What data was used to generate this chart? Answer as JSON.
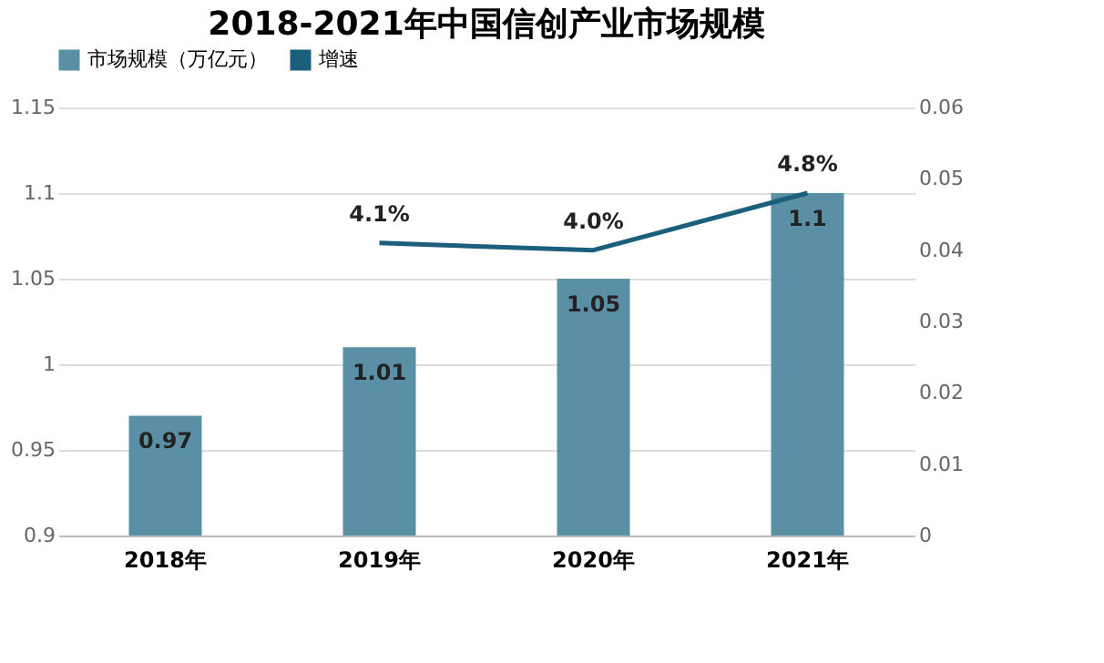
{
  "chart_data": {
    "type": "bar",
    "title": "2018-2021年中国信创产业市场规模",
    "categories": [
      "2018年",
      "2019年",
      "2020年",
      "2021年"
    ],
    "series": [
      {
        "name": "市场规模（万亿元）",
        "color": "#5b8fa6",
        "values": [
          0.97,
          1.01,
          1.05,
          1.1
        ],
        "value_labels": [
          "0.97",
          "1.01",
          "1.05",
          "1.1"
        ]
      },
      {
        "name": "增速",
        "type": "line",
        "axis": "y2",
        "color": "#1b5f7c",
        "values": [
          null,
          0.041,
          0.04,
          0.048
        ],
        "value_labels": [
          null,
          "4.1%",
          "4.0%",
          "4.8%"
        ]
      }
    ],
    "ylim": [
      0.9,
      1.15
    ],
    "yticks": [
      0.9,
      0.95,
      1,
      1.05,
      1.1,
      1.15
    ],
    "y2lim": [
      0,
      0.06
    ],
    "y2ticks": [
      0,
      0.01,
      0.02,
      0.03,
      0.04,
      0.05,
      0.06
    ],
    "grid": "y",
    "legend": "top",
    "marker": "none",
    "line_style": "solid"
  }
}
